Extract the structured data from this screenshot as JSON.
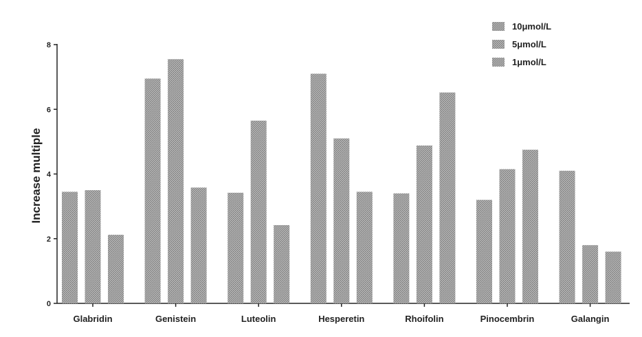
{
  "chart_data": {
    "type": "bar",
    "categories": [
      "Glabridin",
      "Genistein",
      "Luteolin",
      "Hesperetin",
      "Rhoifolin",
      "Pinocembrin",
      "Galangin"
    ],
    "series": [
      {
        "name": "10μmol/L",
        "values": [
          3.45,
          6.95,
          3.42,
          7.1,
          3.4,
          3.2,
          4.1
        ]
      },
      {
        "name": "5μmol/L",
        "values": [
          3.5,
          7.55,
          5.65,
          5.1,
          4.88,
          4.15,
          1.8
        ]
      },
      {
        "name": "1μmol/L",
        "values": [
          2.12,
          3.58,
          2.42,
          3.45,
          6.52,
          4.75,
          1.6
        ]
      }
    ],
    "title": "",
    "xlabel": "",
    "ylabel": "Increase multiple",
    "ylim": [
      0,
      8
    ],
    "yticks": [
      0,
      2,
      4,
      6,
      8
    ],
    "grid": false,
    "legend_position": "top-right",
    "colors": [
      "#9e9e9e",
      "#8f8f8f",
      "#a8a8a8"
    ]
  }
}
